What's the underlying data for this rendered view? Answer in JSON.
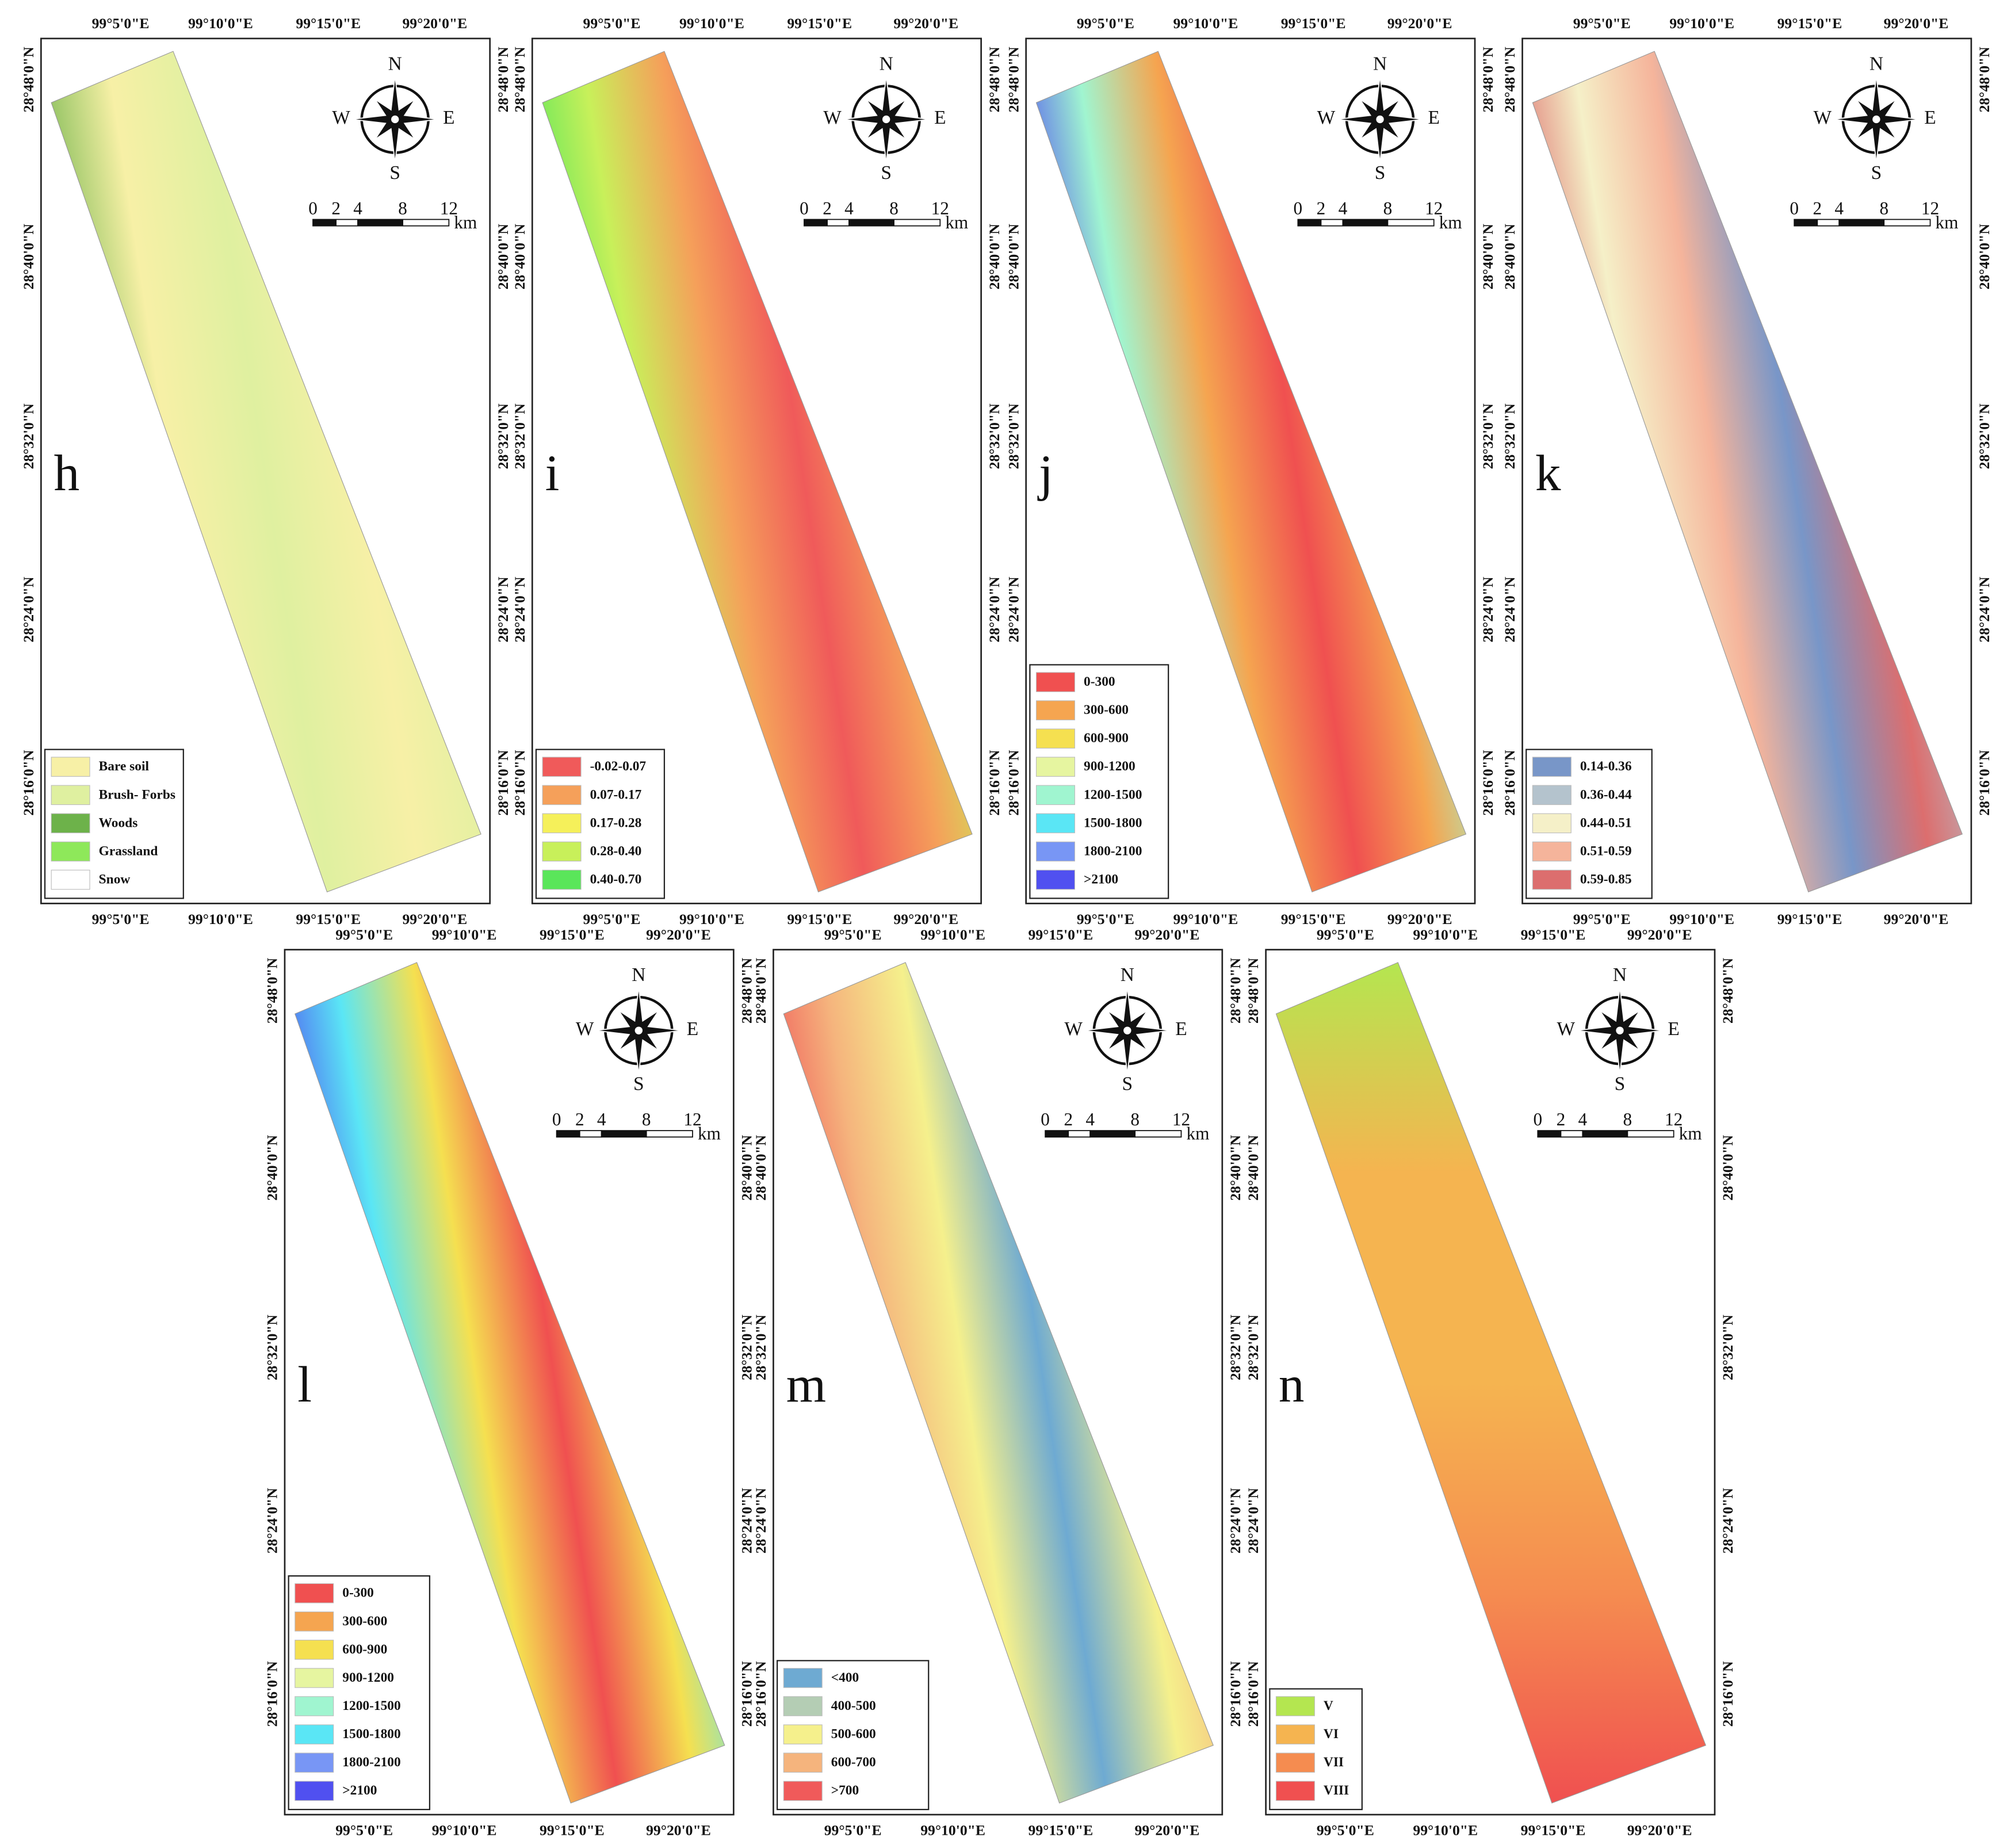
{
  "lon_ticks": [
    "99°5'0\"E",
    "99°10'0\"E",
    "99°15'0\"E",
    "99°20'0\"E"
  ],
  "lat_ticks": [
    "28°48'0\"N",
    "28°40'0\"N",
    "28°32'0\"N",
    "28°24'0\"N",
    "28°16'0\"N"
  ],
  "compass": {
    "n": "N",
    "s": "S",
    "e": "E",
    "w": "W"
  },
  "scale_bar": {
    "labels": [
      "0",
      "2",
      "4",
      "8",
      "12"
    ],
    "unit": "km"
  },
  "panels": [
    {
      "label": "h",
      "legend": [
        {
          "label": "Bare soil",
          "color": "#f7f0a6"
        },
        {
          "label": "Brush- Forbs",
          "color": "#dff0a0"
        },
        {
          "label": "Woods",
          "color": "#6db24a"
        },
        {
          "label": "Grassland",
          "color": "#8ee85a"
        },
        {
          "label": "Snow",
          "color": "#ffffff"
        }
      ]
    },
    {
      "label": "i",
      "legend": [
        {
          "label": "-0.02-0.07",
          "color": "#f05a5a"
        },
        {
          "label": "0.07-0.17",
          "color": "#f5a05a"
        },
        {
          "label": "0.17-0.28",
          "color": "#f5f05a"
        },
        {
          "label": "0.28-0.40",
          "color": "#c8f05a"
        },
        {
          "label": "0.40-0.70",
          "color": "#5ae65a"
        }
      ]
    },
    {
      "label": "j",
      "legend": [
        {
          "label": "0-300",
          "color": "#f05050"
        },
        {
          "label": "300-600",
          "color": "#f5a550"
        },
        {
          "label": "600-900",
          "color": "#f5e050"
        },
        {
          "label": "900-1200",
          "color": "#e6f5a0"
        },
        {
          "label": "1200-1500",
          "color": "#a0f5d0"
        },
        {
          "label": "1500-1800",
          "color": "#5ae6f5"
        },
        {
          "label": "1800-2100",
          "color": "#7896f5"
        },
        {
          "label": ">2100",
          "color": "#5050f0"
        }
      ]
    },
    {
      "label": "k",
      "legend": [
        {
          "label": "0.14-0.36",
          "color": "#7896c8"
        },
        {
          "label": "0.36-0.44",
          "color": "#b4c3cd"
        },
        {
          "label": "0.44-0.51",
          "color": "#f5f0c8"
        },
        {
          "label": "0.51-0.59",
          "color": "#f5b49b"
        },
        {
          "label": "0.59-0.85",
          "color": "#dc6e6e"
        }
      ]
    },
    {
      "label": "l",
      "legend": [
        {
          "label": "0-300",
          "color": "#f05050"
        },
        {
          "label": "300-600",
          "color": "#f5a550"
        },
        {
          "label": "600-900",
          "color": "#f5e050"
        },
        {
          "label": "900-1200",
          "color": "#e6f5a0"
        },
        {
          "label": "1200-1500",
          "color": "#a0f5d0"
        },
        {
          "label": "1500-1800",
          "color": "#5ae6f5"
        },
        {
          "label": "1800-2100",
          "color": "#7896f5"
        },
        {
          "label": ">2100",
          "color": "#5050f0"
        }
      ]
    },
    {
      "label": "m",
      "legend": [
        {
          "label": "<400",
          "color": "#6eaad2"
        },
        {
          "label": "400-500",
          "color": "#b4cdb4"
        },
        {
          "label": "500-600",
          "color": "#f5f08c"
        },
        {
          "label": "600-700",
          "color": "#f5b47d"
        },
        {
          "label": ">700",
          "color": "#f05a5a"
        }
      ]
    },
    {
      "label": "n",
      "legend": [
        {
          "label": "V",
          "color": "#b4e650"
        },
        {
          "label": "VI",
          "color": "#f5b450"
        },
        {
          "label": "VII",
          "color": "#f58c50"
        },
        {
          "label": "VIII",
          "color": "#f05050"
        }
      ]
    }
  ]
}
